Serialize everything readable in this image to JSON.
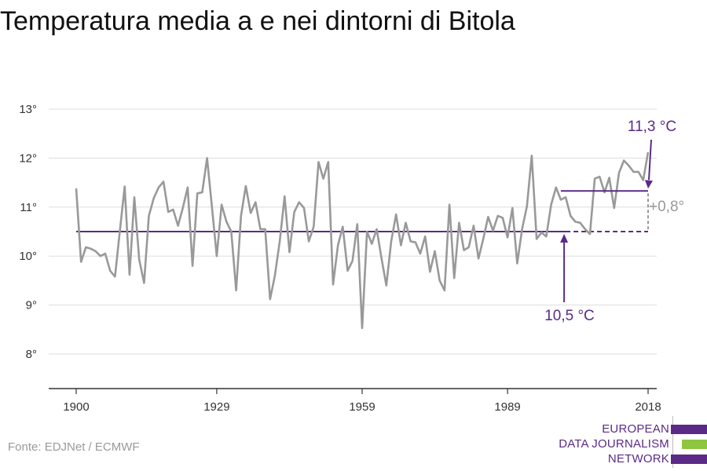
{
  "title": "Temperatura media a e nei dintorni di Bitola",
  "source": "Fonte: EDJNet / ECMWF",
  "brand": {
    "lines": [
      "EUROPEAN",
      "DATA JOURNALISM",
      "NETWORK"
    ],
    "colors": [
      "#5b2a86",
      "#8dc63f",
      "#5b2a86"
    ]
  },
  "chart_data": {
    "type": "line",
    "title": "Temperatura media a e nei dintorni di Bitola",
    "xlabel": "",
    "ylabel": "",
    "xlim": [
      1900,
      2018
    ],
    "ylim": [
      8,
      13
    ],
    "grid": true,
    "x_ticks": [
      {
        "value": 1900,
        "label": "1900"
      },
      {
        "value": 1929,
        "label": "1929"
      },
      {
        "value": 1959,
        "label": "1959"
      },
      {
        "value": 1989,
        "label": "1989"
      },
      {
        "value": 2018,
        "label": "2018"
      }
    ],
    "y_ticks": [
      {
        "value": 8,
        "label": "8°"
      },
      {
        "value": 9,
        "label": "9°"
      },
      {
        "value": 10,
        "label": "10°"
      },
      {
        "value": 11,
        "label": "11°"
      },
      {
        "value": 12,
        "label": "12°"
      },
      {
        "value": 13,
        "label": "13°"
      }
    ],
    "series": [
      {
        "color": "#999999",
        "x": [
          1900,
          1901,
          1902,
          1903,
          1904,
          1905,
          1906,
          1907,
          1908,
          1909,
          1910,
          1911,
          1912,
          1913,
          1914,
          1915,
          1916,
          1917,
          1918,
          1919,
          1920,
          1921,
          1922,
          1923,
          1924,
          1925,
          1926,
          1927,
          1928,
          1929,
          1930,
          1931,
          1932,
          1933,
          1934,
          1935,
          1936,
          1937,
          1938,
          1939,
          1940,
          1941,
          1942,
          1943,
          1944,
          1945,
          1946,
          1947,
          1948,
          1949,
          1950,
          1951,
          1952,
          1953,
          1954,
          1955,
          1956,
          1957,
          1958,
          1959,
          1960,
          1961,
          1962,
          1963,
          1964,
          1965,
          1966,
          1967,
          1968,
          1969,
          1970,
          1971,
          1972,
          1973,
          1974,
          1975,
          1976,
          1977,
          1978,
          1979,
          1980,
          1981,
          1982,
          1983,
          1984,
          1985,
          1986,
          1987,
          1988,
          1989,
          1990,
          1991,
          1992,
          1993,
          1994,
          1995,
          1996,
          1997,
          1998,
          1999,
          2000,
          2001,
          2002,
          2003,
          2004,
          2005,
          2006,
          2007,
          2008,
          2009,
          2010,
          2011,
          2012,
          2013,
          2014,
          2015,
          2016,
          2017,
          2018
        ],
        "y": [
          11.38,
          9.88,
          10.18,
          10.15,
          10.1,
          10.0,
          10.05,
          9.7,
          9.58,
          10.5,
          11.42,
          9.62,
          11.2,
          9.93,
          9.45,
          10.82,
          11.18,
          11.4,
          11.52,
          10.9,
          10.95,
          10.62,
          10.98,
          11.4,
          9.8,
          11.28,
          11.3,
          12.0,
          11.02,
          10.0,
          11.05,
          10.7,
          10.5,
          9.3,
          10.82,
          11.43,
          10.88,
          11.1,
          10.55,
          10.55,
          9.12,
          9.6,
          10.3,
          11.22,
          10.08,
          10.9,
          11.1,
          10.98,
          10.3,
          10.6,
          11.92,
          11.58,
          11.92,
          9.42,
          10.22,
          10.6,
          9.7,
          9.9,
          10.65,
          8.53,
          10.5,
          10.25,
          10.55,
          9.95,
          9.4,
          10.3,
          10.85,
          10.22,
          10.68,
          10.3,
          10.28,
          10.05,
          10.4,
          9.68,
          10.1,
          9.5,
          9.3,
          11.05,
          9.55,
          10.68,
          10.12,
          10.18,
          10.62,
          9.95,
          10.35,
          10.8,
          10.52,
          10.82,
          10.78,
          10.38,
          10.98,
          9.85,
          10.55,
          11.02,
          12.05,
          10.35,
          10.48,
          10.4,
          11.05,
          11.4,
          11.15,
          11.2,
          10.82,
          10.7,
          10.68,
          10.55,
          10.45,
          11.58,
          11.62,
          11.3,
          11.6,
          10.98,
          11.7,
          11.95,
          11.85,
          11.72,
          11.72,
          11.55,
          12.12
        ]
      }
    ],
    "annotations": {
      "baseline": {
        "label": "10,5 °C",
        "value": 10.5,
        "from": 1900,
        "to": 2001,
        "color": "#5b2a86"
      },
      "recent": {
        "label": "11,3 °C",
        "value": 11.33,
        "from": 2000,
        "to": 2018,
        "color": "#5b2a86"
      },
      "difference": {
        "label": "+0,8°",
        "color": "#999999"
      }
    }
  }
}
